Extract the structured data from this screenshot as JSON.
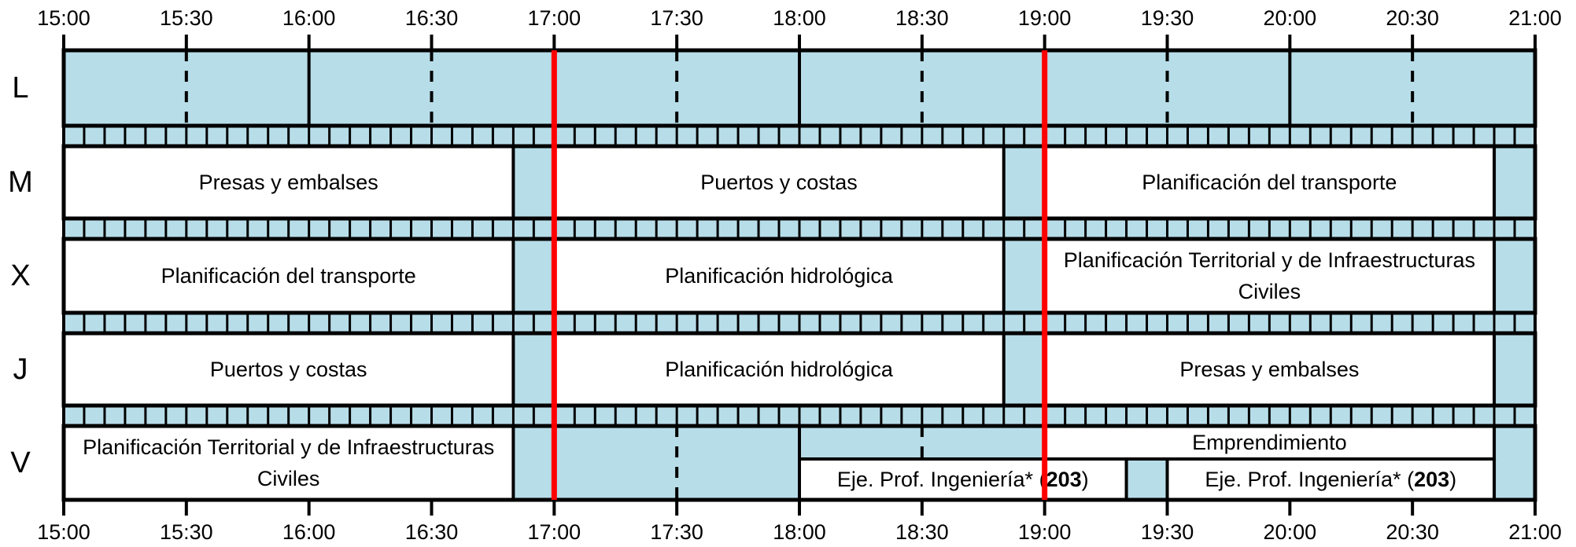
{
  "timeline": {
    "start_hour": 15,
    "end_hour": 21,
    "tick_labels": [
      "15:00",
      "15:30",
      "16:00",
      "16:30",
      "17:00",
      "17:30",
      "18:00",
      "18:30",
      "19:00",
      "19:30",
      "20:00",
      "20:30",
      "21:00"
    ],
    "highlight_times": [
      "17:00",
      "19:00"
    ]
  },
  "colors": {
    "background_fill": "#b7dde8",
    "block_fill": "#ffffff",
    "border": "#000000",
    "highlight": "#ff0000"
  },
  "days": [
    {
      "label": "L",
      "blocks": []
    },
    {
      "label": "M",
      "blocks": [
        {
          "start": "15:00",
          "end": "16:50",
          "lines": [
            "Presas y embalses"
          ]
        },
        {
          "start": "17:00",
          "end": "18:50",
          "lines": [
            "Puertos y costas"
          ]
        },
        {
          "start": "19:00",
          "end": "20:50",
          "lines": [
            "Planificación del transporte"
          ]
        }
      ]
    },
    {
      "label": "X",
      "blocks": [
        {
          "start": "15:00",
          "end": "16:50",
          "lines": [
            "Planificación del transporte"
          ]
        },
        {
          "start": "17:00",
          "end": "18:50",
          "lines": [
            "Planificación hidrológica"
          ]
        },
        {
          "start": "19:00",
          "end": "20:50",
          "lines": [
            "Planificación Territorial y de Infraestructuras",
            "Civiles"
          ]
        }
      ]
    },
    {
      "label": "J",
      "blocks": [
        {
          "start": "15:00",
          "end": "16:50",
          "lines": [
            "Puertos y costas"
          ]
        },
        {
          "start": "17:00",
          "end": "18:50",
          "lines": [
            "Planificación hidrológica"
          ]
        },
        {
          "start": "19:00",
          "end": "20:50",
          "lines": [
            "Presas y embalses"
          ]
        }
      ]
    },
    {
      "label": "V",
      "blocks": [
        {
          "start": "15:00",
          "end": "16:50",
          "lines": [
            "Planificación Territorial y de Infraestructuras",
            "Civiles"
          ]
        },
        {
          "start": "19:00",
          "end": "20:50",
          "lines": [
            "Emprendimiento"
          ],
          "half": "top"
        },
        {
          "start": "18:00",
          "end": "19:20",
          "text": "Eje. Prof. Ingeniería* (",
          "bold": "203",
          "after": ")",
          "half": "bottom"
        },
        {
          "start": "19:30",
          "end": "20:50",
          "text": "Eje. Prof. Ingeniería* (",
          "bold": "203",
          "after": ")",
          "half": "bottom"
        }
      ]
    }
  ]
}
